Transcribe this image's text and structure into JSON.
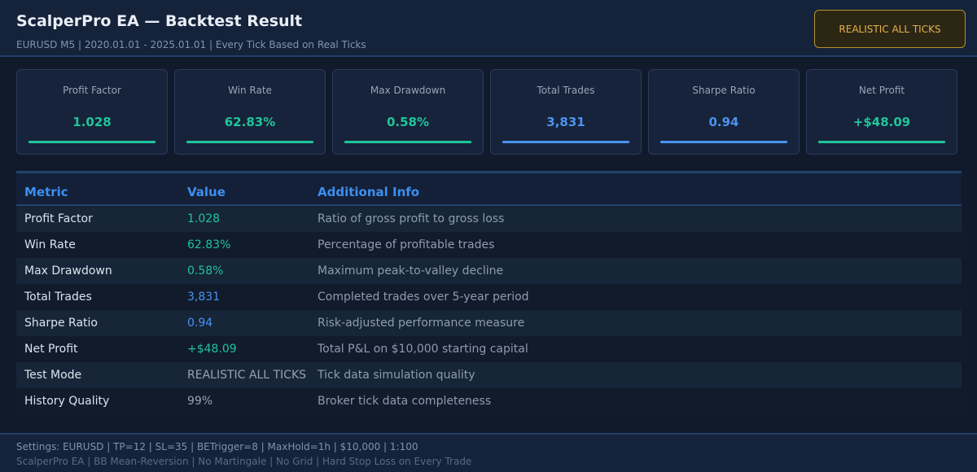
{
  "header": {
    "title": "ScalperPro EA — Backtest Result",
    "subtitle": "EURUSD M5 | 2020.01.01 - 2025.01.01 | Every Tick Based on Real Ticks",
    "mode_badge": "REALISTIC ALL TICKS"
  },
  "cards": [
    {
      "label": "Profit Factor",
      "value": "1.028",
      "color": "#1fc59a"
    },
    {
      "label": "Win Rate",
      "value": "62.83%",
      "color": "#1fc59a"
    },
    {
      "label": "Max Drawdown",
      "value": "0.58%",
      "color": "#1fc59a"
    },
    {
      "label": "Total Trades",
      "value": "3,831",
      "color": "#4b92f0"
    },
    {
      "label": "Sharpe Ratio",
      "value": "0.94",
      "color": "#4b92f0"
    },
    {
      "label": "Net Profit",
      "value": "+$48.09",
      "color": "#1fc59a"
    }
  ],
  "table": {
    "columns": [
      "Metric",
      "Value",
      "Additional Info"
    ],
    "rows": [
      {
        "metric": "Profit Factor",
        "value": "1.028",
        "info": "Ratio of gross profit to gross loss",
        "tone": "green"
      },
      {
        "metric": "Win Rate",
        "value": "62.83%",
        "info": "Percentage of profitable trades",
        "tone": "green"
      },
      {
        "metric": "Max Drawdown",
        "value": "0.58%",
        "info": "Maximum peak-to-valley decline",
        "tone": "green"
      },
      {
        "metric": "Total Trades",
        "value": "3,831",
        "info": "Completed trades over 5-year period",
        "tone": "blue"
      },
      {
        "metric": "Sharpe Ratio",
        "value": "0.94",
        "info": "Risk-adjusted performance measure",
        "tone": "blue"
      },
      {
        "metric": "Net Profit",
        "value": "+$48.09",
        "info": "Total P&L on $10,000 starting capital",
        "tone": "green"
      },
      {
        "metric": "Test Mode",
        "value": "REALISTIC ALL TICKS",
        "info": "Tick data simulation quality",
        "tone": "gray"
      },
      {
        "metric": "History Quality",
        "value": "99%",
        "info": "Broker tick data completeness",
        "tone": "gray"
      }
    ]
  },
  "footer": {
    "settings": "Settings: EURUSD | TP=12 | SL=35 | BETrigger=8 | MaxHold=1h | $10,000 | 1:100",
    "tags": "ScalperPro EA  |  BB Mean-Reversion  |  No Martingale  |  No Grid  |  Hard Stop Loss on Every Trade"
  },
  "colors": {
    "green": "#1fc59a",
    "blue": "#4b92f0",
    "gray": "#97a2b3",
    "accent": "#3d8ff0",
    "badge": "#e7b24a"
  }
}
